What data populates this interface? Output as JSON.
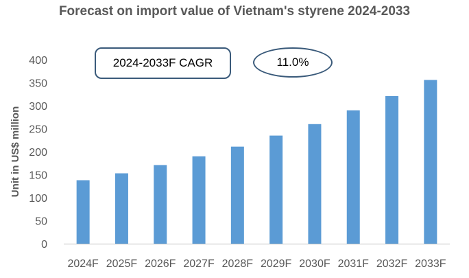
{
  "chart_data": {
    "type": "bar",
    "title": "Forecast on import value of Vietnam's styrene 2024-2033",
    "xlabel": "",
    "ylabel": "Unit in US$ million",
    "categories": [
      "2024F",
      "2025F",
      "2026F",
      "2027F",
      "2028F",
      "2029F",
      "2030F",
      "2031F",
      "2032F",
      "2033F"
    ],
    "values": [
      138,
      153,
      171,
      190,
      211,
      235,
      260,
      290,
      321,
      356
    ],
    "ylim": [
      0,
      400
    ],
    "yticks": [
      0,
      50,
      100,
      150,
      200,
      250,
      300,
      350,
      400
    ],
    "grid": false,
    "bar_color": "#5b9bd5",
    "annotations": {
      "cagr_label": "2024-2033F CAGR",
      "cagr_value": "11.0%"
    }
  }
}
